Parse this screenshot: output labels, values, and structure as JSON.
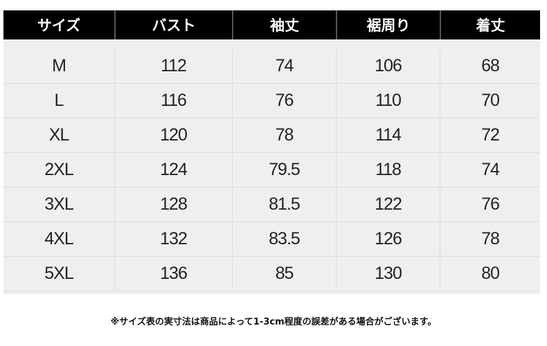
{
  "headers": [
    "サイズ",
    "バスト",
    "袖丈",
    "裾周り",
    "着丈"
  ],
  "rows": [
    [
      "M",
      "112",
      "74",
      "106",
      "68"
    ],
    [
      "L",
      "116",
      "76",
      "110",
      "70"
    ],
    [
      "XL",
      "120",
      "78",
      "114",
      "72"
    ],
    [
      "2XL",
      "124",
      "79.5",
      "118",
      "74"
    ],
    [
      "3XL",
      "128",
      "81.5",
      "122",
      "76"
    ],
    [
      "4XL",
      "132",
      "83.5",
      "126",
      "78"
    ],
    [
      "5XL",
      "136",
      "85",
      "130",
      "80"
    ]
  ],
  "note": "※サイズ表の実寸法は商品によって1-3cm程度の誤差がある場合がございます。"
}
